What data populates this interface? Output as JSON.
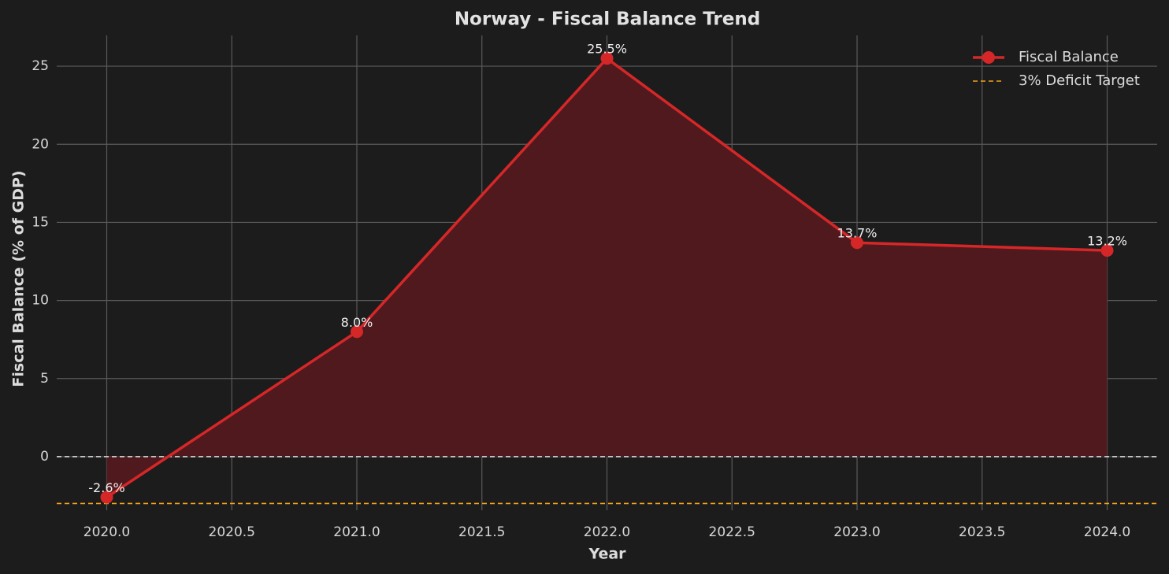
{
  "chart_data": {
    "type": "line",
    "title": "Norway - Fiscal Balance Trend",
    "x_label": "Year",
    "y_label": "Fiscal Balance (% of GDP)",
    "x": [
      2020,
      2021,
      2022,
      2023,
      2024
    ],
    "series": [
      {
        "name": "Fiscal Balance",
        "color": "#d62728",
        "fill_color": "#50191e",
        "values": [
          -2.6,
          8.0,
          25.5,
          13.7,
          13.2
        ],
        "value_labels": [
          "-2.6%",
          "8.0%",
          "25.5%",
          "13.7%",
          "13.2%"
        ]
      }
    ],
    "hlines": [
      {
        "value": 0,
        "color": "#dddddd"
      },
      {
        "name": "3% Deficit Target",
        "value": -3,
        "color": "#f5a21b"
      }
    ],
    "xlim": [
      2019.8,
      2024.2
    ],
    "ylim": [
      -3.43,
      26.97
    ],
    "xticks": [
      {
        "value": 2020,
        "label": "2020.0"
      },
      {
        "value": 2020.5,
        "label": "2020.5"
      },
      {
        "value": 2021,
        "label": "2021.0"
      },
      {
        "value": 2021.5,
        "label": "2021.5"
      },
      {
        "value": 2022,
        "label": "2022.0"
      },
      {
        "value": 2022.5,
        "label": "2022.5"
      },
      {
        "value": 2023,
        "label": "2023.0"
      },
      {
        "value": 2023.5,
        "label": "2023.5"
      },
      {
        "value": 2024,
        "label": "2024.0"
      }
    ],
    "yticks": [
      0,
      5,
      10,
      15,
      20,
      25
    ],
    "grid": true,
    "legend": "upper right"
  }
}
